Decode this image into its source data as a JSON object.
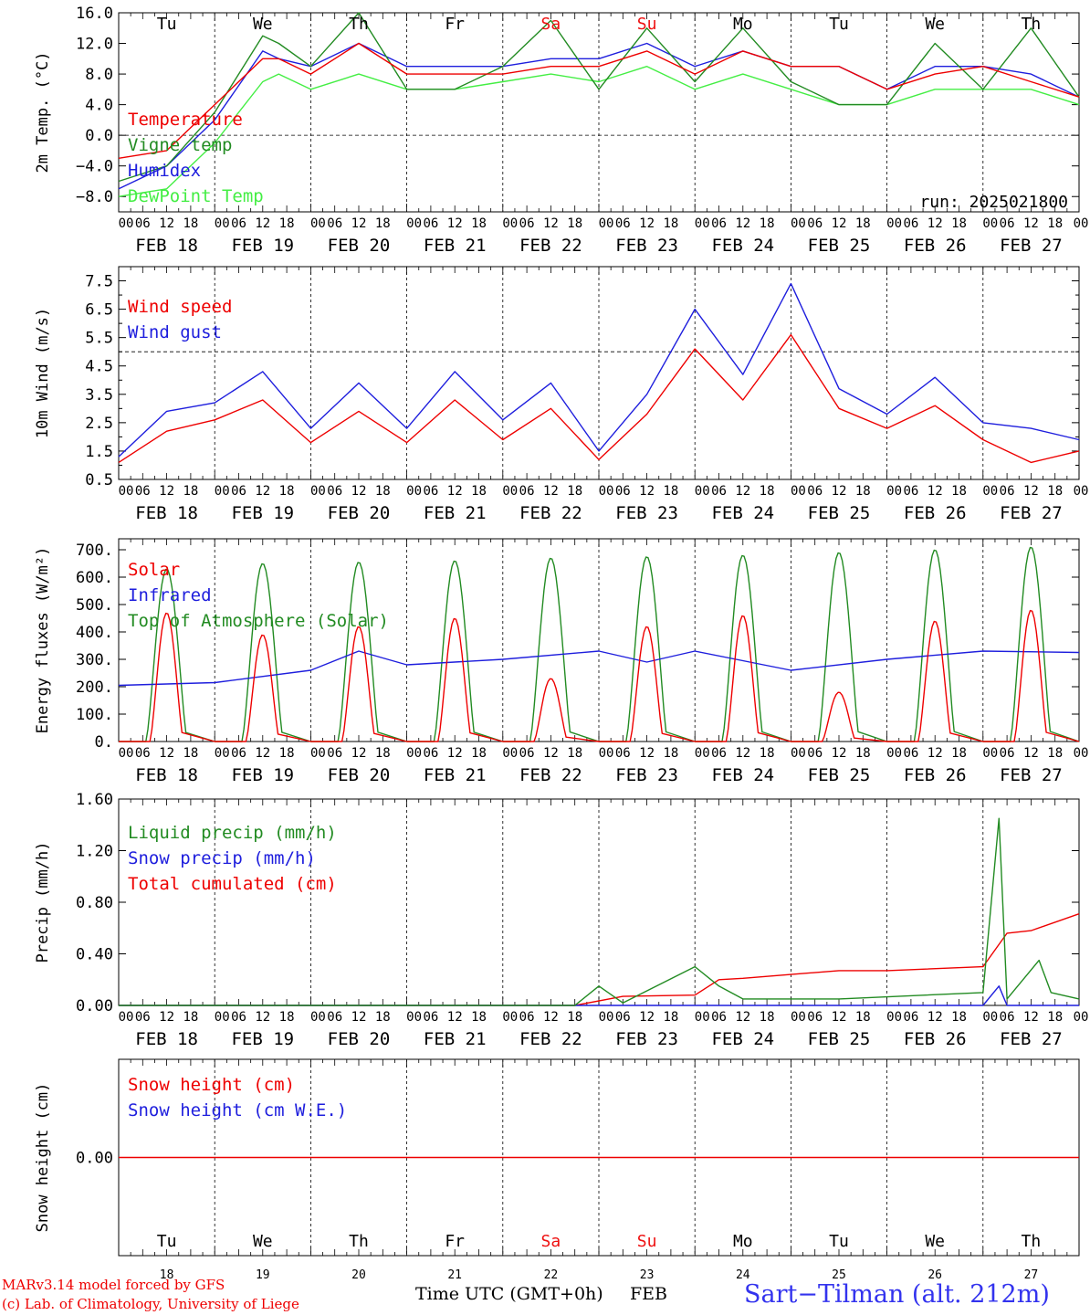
{
  "colors": {
    "red": "#ee0000",
    "green": "#228b22",
    "blue": "#1e1edd",
    "lightgreen": "#44ee44",
    "weekend": "#ee1111",
    "black": "#000000",
    "site": "#3333ee"
  },
  "chart_data": {
    "type": "line",
    "days": {
      "x_tick_labels": [
        "00",
        "06",
        "12",
        "18"
      ],
      "date_labels": [
        "FEB 18",
        "FEB 19",
        "FEB 20",
        "FEB 21",
        "FEB 22",
        "FEB 23",
        "FEB 24",
        "FEB 25",
        "FEB 26",
        "FEB 27"
      ],
      "weekday_labels": [
        "Tu",
        "We",
        "Th",
        "Fr",
        "Sa",
        "Su",
        "Mo",
        "Tu",
        "We",
        "Th"
      ],
      "weekend_index": [
        4,
        5
      ],
      "day_numbers": [
        "18",
        "19",
        "20",
        "21",
        "22",
        "23",
        "24",
        "25",
        "26",
        "27"
      ]
    },
    "x_unit": "hour since 2025-02-18 00 UTC",
    "panels": [
      {
        "ylabel": "2m Temp. (°C)",
        "ylim": [
          -10,
          16
        ],
        "yticks": [
          16,
          12,
          8,
          4,
          0,
          -4,
          -8
        ],
        "ytick_labels": [
          "16.0",
          "12.0",
          "8.0",
          "4.0",
          "0.0",
          "−4.0",
          "−8.0"
        ],
        "hline": 0,
        "annotation": "run: 2025021800",
        "series": [
          {
            "name": "Temperature",
            "color": "red",
            "x": [
              0,
              12,
              24,
              36,
              40,
              48,
              60,
              72,
              84,
              96,
              108,
              120,
              132,
              144,
              156,
              168,
              180,
              192,
              204,
              216,
              228,
              240
            ],
            "y": [
              -3,
              -2,
              4,
              10,
              10,
              8,
              12,
              8,
              8,
              8,
              9,
              9,
              11,
              8,
              11,
              9,
              9,
              6,
              8,
              9,
              7,
              5
            ]
          },
          {
            "name": "Vigne temp",
            "color": "green",
            "x": [
              0,
              12,
              24,
              36,
              40,
              48,
              60,
              72,
              84,
              96,
              108,
              120,
              132,
              144,
              156,
              168,
              180,
              192,
              204,
              216,
              228,
              240
            ],
            "y": [
              -6,
              -4,
              3,
              13,
              12,
              9,
              16,
              6,
              6,
              9,
              15,
              6,
              14,
              7,
              14,
              7,
              4,
              4,
              12,
              6,
              14,
              5
            ]
          },
          {
            "name": "Humidex",
            "color": "blue",
            "x": [
              0,
              12,
              24,
              36,
              40,
              48,
              60,
              72,
              84,
              96,
              108,
              120,
              132,
              144,
              156,
              168,
              180,
              192,
              204,
              216,
              228,
              240
            ],
            "y": [
              -7,
              -4,
              2,
              11,
              10,
              9,
              12,
              9,
              9,
              9,
              10,
              10,
              12,
              9,
              11,
              9,
              9,
              6,
              9,
              9,
              8,
              5
            ]
          },
          {
            "name": "DewPoint Temp",
            "color": "lightgreen",
            "x": [
              0,
              12,
              24,
              36,
              40,
              48,
              60,
              72,
              84,
              96,
              108,
              120,
              132,
              144,
              156,
              168,
              180,
              192,
              204,
              216,
              228,
              240
            ],
            "y": [
              -8,
              -7,
              -1,
              7,
              8,
              6,
              8,
              6,
              6,
              7,
              8,
              7,
              9,
              6,
              8,
              6,
              4,
              4,
              6,
              6,
              6,
              4
            ]
          }
        ]
      },
      {
        "ylabel": "10m Wind (m/s)",
        "ylim": [
          0.5,
          8.0
        ],
        "yticks": [
          7.5,
          6.5,
          5.5,
          4.5,
          3.5,
          2.5,
          1.5,
          0.5
        ],
        "ytick_labels": [
          "7.5",
          "6.5",
          "5.5",
          "4.5",
          "3.5",
          "2.5",
          "1.5",
          "0.5"
        ],
        "hline": 5.0,
        "series": [
          {
            "name": "Wind speed",
            "color": "red",
            "x": [
              0,
              12,
              24,
              36,
              48,
              60,
              72,
              84,
              96,
              108,
              120,
              132,
              144,
              156,
              168,
              180,
              192,
              204,
              216,
              228,
              240
            ],
            "y": [
              1.1,
              2.2,
              2.6,
              3.3,
              1.8,
              2.9,
              1.8,
              3.3,
              1.9,
              3.0,
              1.2,
              2.8,
              5.1,
              3.3,
              5.6,
              3.0,
              2.3,
              3.1,
              1.9,
              1.1,
              1.5
            ]
          },
          {
            "name": "Wind gust",
            "color": "blue",
            "x": [
              0,
              12,
              24,
              36,
              48,
              60,
              72,
              84,
              96,
              108,
              120,
              132,
              144,
              156,
              168,
              180,
              192,
              204,
              216,
              228,
              240
            ],
            "y": [
              1.3,
              2.9,
              3.2,
              4.3,
              2.3,
              3.9,
              2.3,
              4.3,
              2.6,
              3.9,
              1.5,
              3.5,
              6.5,
              4.2,
              7.4,
              3.7,
              2.8,
              4.1,
              2.5,
              2.3,
              1.9
            ]
          }
        ]
      },
      {
        "ylabel": "Energy fluxes (W/m²)",
        "ylim": [
          0,
          740
        ],
        "yticks": [
          700,
          600,
          500,
          400,
          300,
          200,
          100,
          0
        ],
        "ytick_labels": [
          "700.",
          "600.",
          "500.",
          "400.",
          "300.",
          "200.",
          "100.",
          "0."
        ],
        "series": [
          {
            "name": "Solar",
            "color": "red",
            "daily_peak": [
              470,
              390,
              420,
              450,
              230,
              420,
              460,
              180,
              440,
              480
            ]
          },
          {
            "name": "Infrared",
            "color": "blue",
            "x": [
              0,
              24,
              48,
              60,
              72,
              96,
              120,
              132,
              144,
              168,
              192,
              216,
              240
            ],
            "y": [
              205,
              215,
              260,
              330,
              280,
              300,
              330,
              290,
              330,
              260,
              300,
              330,
              325
            ]
          },
          {
            "name": "Top of Atmosphere (Solar)",
            "color": "green",
            "daily_peak": [
              630,
              650,
              655,
              660,
              670,
              675,
              680,
              690,
              700,
              710
            ]
          }
        ]
      },
      {
        "ylabel": "Precip (mm/h)",
        "ylim": [
          0,
          1.6
        ],
        "yticks": [
          1.6,
          1.2,
          0.8,
          0.4,
          0.0
        ],
        "ytick_labels": [
          "1.60",
          "1.20",
          "0.80",
          "0.40",
          "0.00"
        ],
        "series": [
          {
            "name": "Liquid precip (mm/h)",
            "color": "green",
            "x": [
              0,
              114,
              120,
              126,
              144,
              150,
              156,
              168,
              180,
              216,
              220,
              222,
              230,
              233,
              240
            ],
            "y": [
              0,
              0,
              0.15,
              0.02,
              0.3,
              0.15,
              0.05,
              0.05,
              0.05,
              0.1,
              1.45,
              0.05,
              0.35,
              0.1,
              0.05
            ]
          },
          {
            "name": "Snow precip (mm/h)",
            "color": "blue",
            "x": [
              0,
              216,
              220,
              222,
              240
            ],
            "y": [
              0,
              0,
              0.15,
              0,
              0
            ]
          },
          {
            "name": "Total cumulated (cm)",
            "color": "red",
            "x": [
              0,
              114,
              126,
              144,
              150,
              156,
              168,
              180,
              192,
              216,
              222,
              228,
              240
            ],
            "y": [
              0,
              0,
              0.07,
              0.08,
              0.2,
              0.21,
              0.24,
              0.27,
              0.27,
              0.3,
              0.56,
              0.58,
              0.71
            ]
          }
        ]
      },
      {
        "ylabel": "Snow height (cm)",
        "ylim": [
          -0.1,
          0.1
        ],
        "yticks": [
          0.0
        ],
        "ytick_labels": [
          "0.00"
        ],
        "series": [
          {
            "name": "Snow height (cm)",
            "color": "red",
            "x": [
              0,
              240
            ],
            "y": [
              0,
              0
            ]
          },
          {
            "name": "Snow height (cm W.E.)",
            "color": "blue",
            "x": [],
            "y": []
          }
        ]
      }
    ]
  },
  "footer": {
    "model": "MARv3.14 model forced by GFS",
    "copyright": "(c) Lab. of Climatology, University of Liege",
    "xlabel": "Time UTC (GMT+0h)",
    "month": "FEB",
    "site": "Sart−Tilman (alt. 212m)"
  }
}
